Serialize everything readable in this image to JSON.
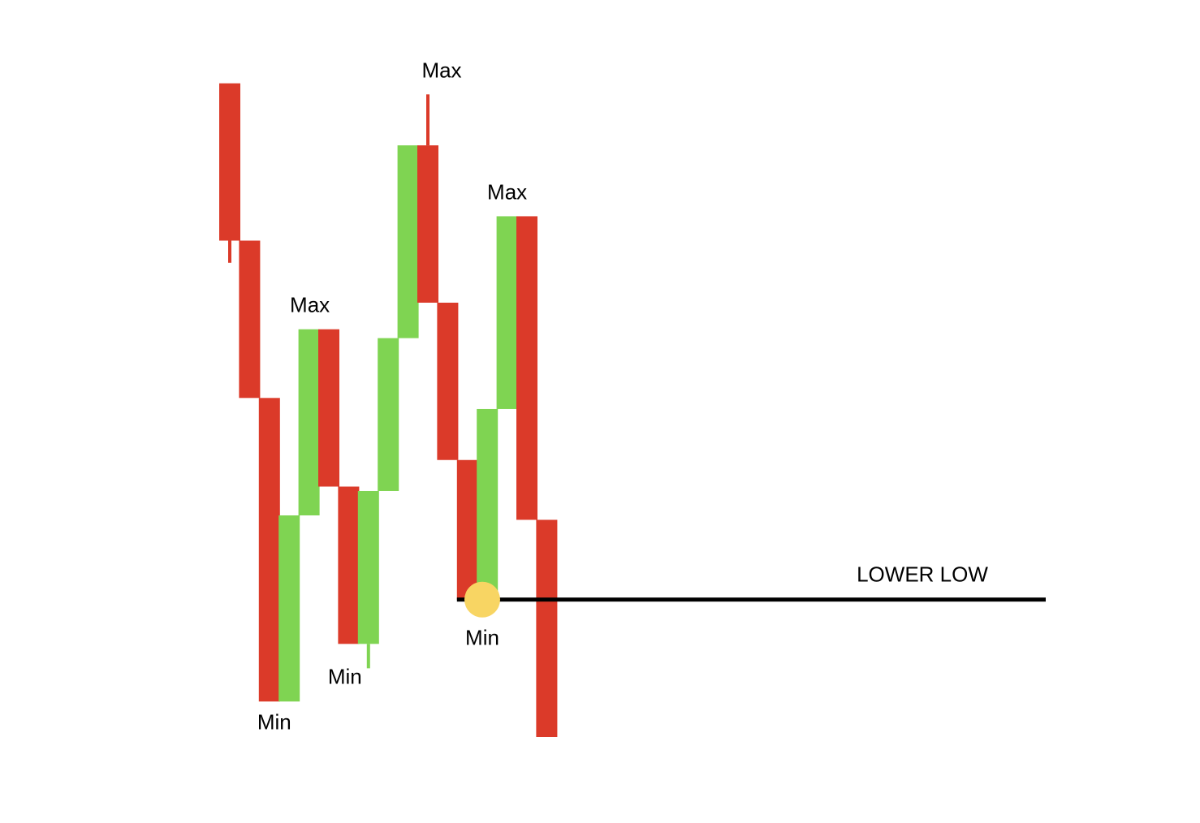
{
  "chart_data": {
    "type": "bar",
    "bars": [
      {
        "open": 29.5,
        "close": 22.4,
        "low": 21.4,
        "high": 29.5
      },
      {
        "open": 22.4,
        "close": 15.3,
        "low": 15.3,
        "high": 22.4
      },
      {
        "open": 15.3,
        "close": 1.6,
        "low": 1.6,
        "high": 15.3
      },
      {
        "open": 1.6,
        "close": 10.0,
        "low": 1.6,
        "high": 10.0
      },
      {
        "open": 10.0,
        "close": 18.4,
        "low": 10.0,
        "high": 18.4
      },
      {
        "open": 18.4,
        "close": 11.3,
        "low": 11.3,
        "high": 18.4
      },
      {
        "open": 11.3,
        "close": 4.2,
        "low": 4.2,
        "high": 11.3
      },
      {
        "open": 4.2,
        "close": 11.1,
        "low": 3.1,
        "high": 11.1
      },
      {
        "open": 11.1,
        "close": 18.0,
        "low": 11.1,
        "high": 18.0
      },
      {
        "open": 18.0,
        "close": 26.7,
        "low": 18.0,
        "high": 26.7
      },
      {
        "open": 26.7,
        "close": 19.6,
        "low": 19.6,
        "high": 29.0
      },
      {
        "open": 19.6,
        "close": 12.5,
        "low": 12.5,
        "high": 19.6
      },
      {
        "open": 12.5,
        "close": 6.2,
        "low": 6.2,
        "high": 12.5
      },
      {
        "open": 6.2,
        "close": 14.8,
        "low": 6.2,
        "high": 14.8
      },
      {
        "open": 14.8,
        "close": 23.5,
        "low": 14.8,
        "high": 23.5
      },
      {
        "open": 23.5,
        "close": 9.8,
        "low": 9.8,
        "high": 23.5
      },
      {
        "open": 9.8,
        "close": 0,
        "low": 0,
        "high": 9.8
      }
    ],
    "annotations": [
      {
        "bar": 2,
        "text": "Min",
        "position": "below"
      },
      {
        "bar": 4,
        "text": "Max",
        "position": "above"
      },
      {
        "bar": 7,
        "text": "Min",
        "position": "below"
      },
      {
        "bar": 10,
        "text": "Max",
        "position": "above"
      },
      {
        "bar": 12,
        "text": "Min",
        "position": "below"
      },
      {
        "bar": 14,
        "text": "Max",
        "position": "above"
      }
    ],
    "reference_line": {
      "value": 6.2,
      "label": "LOWER LOW"
    },
    "highlight_point": {
      "bar": 13,
      "value": 6.2
    },
    "ylim": [
      0,
      30
    ],
    "colors": {
      "bullish": "#7fd452",
      "bearish": "#db3a29",
      "line": "#000000",
      "highlight": "#f8d563",
      "background": "#ffffff"
    }
  }
}
